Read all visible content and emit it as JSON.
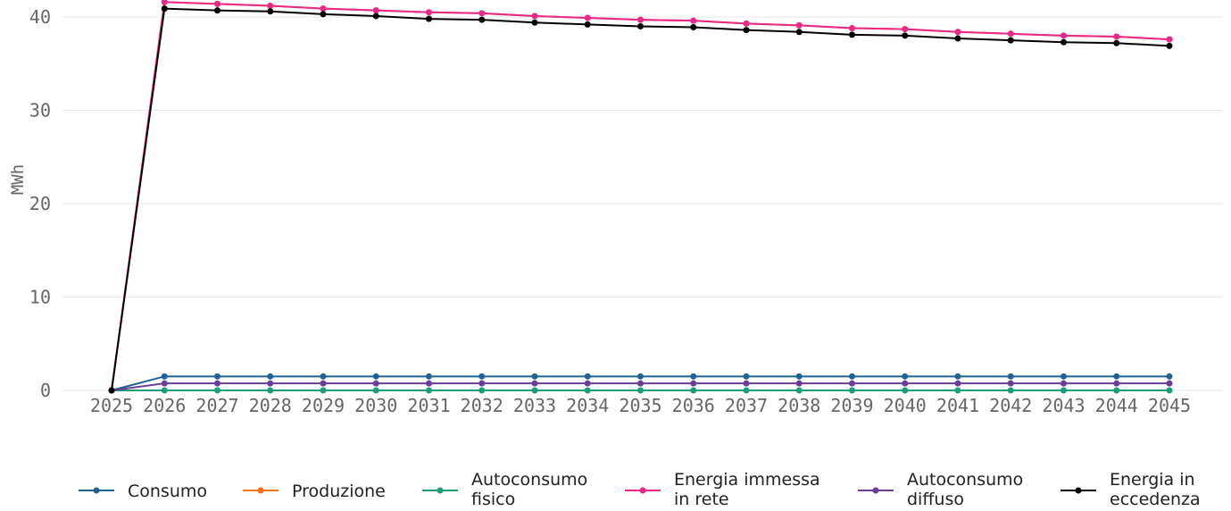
{
  "chart_data": {
    "type": "line",
    "title": "",
    "xlabel": "",
    "ylabel": "MWh",
    "ylim": [
      0,
      42
    ],
    "yticks": [
      0,
      10,
      20,
      30,
      40
    ],
    "grid": true,
    "legend_position": "bottom",
    "x": [
      "2025",
      "2026",
      "2027",
      "2028",
      "2029",
      "2030",
      "2031",
      "2032",
      "2033",
      "2034",
      "2035",
      "2036",
      "2037",
      "2038",
      "2039",
      "2040",
      "2041",
      "2042",
      "2043",
      "2044",
      "2045"
    ],
    "series": [
      {
        "name": "Consumo",
        "legend_lines": [
          "Consumo"
        ],
        "color": "#1f6396",
        "values": [
          0,
          1.5,
          1.5,
          1.5,
          1.5,
          1.5,
          1.5,
          1.5,
          1.5,
          1.5,
          1.5,
          1.5,
          1.5,
          1.5,
          1.5,
          1.5,
          1.5,
          1.5,
          1.5,
          1.5,
          1.5
        ]
      },
      {
        "name": "Produzione",
        "legend_lines": [
          "Produzione"
        ],
        "color": "#f47216",
        "values": [
          0,
          41.6,
          41.4,
          41.2,
          40.9,
          40.7,
          40.5,
          40.4,
          40.1,
          39.9,
          39.7,
          39.6,
          39.3,
          39.1,
          38.8,
          38.7,
          38.4,
          38.2,
          38.0,
          37.9,
          37.6
        ]
      },
      {
        "name": "Autoconsumo fisico",
        "legend_lines": [
          "Autoconsumo",
          "fisico"
        ],
        "color": "#1a9e77",
        "values": [
          0,
          0,
          0,
          0,
          0,
          0,
          0,
          0,
          0,
          0,
          0,
          0,
          0,
          0,
          0,
          0,
          0,
          0,
          0,
          0,
          0
        ]
      },
      {
        "name": "Energia immessa in rete",
        "legend_lines": [
          "Energia immessa",
          "in rete"
        ],
        "color": "#e7298a",
        "values": [
          0,
          41.6,
          41.4,
          41.2,
          40.9,
          40.7,
          40.5,
          40.4,
          40.1,
          39.9,
          39.7,
          39.6,
          39.3,
          39.1,
          38.8,
          38.7,
          38.4,
          38.2,
          38.0,
          37.9,
          37.6
        ]
      },
      {
        "name": "Autoconsumo diffuso",
        "legend_lines": [
          "Autoconsumo",
          "diffuso"
        ],
        "color": "#6a3d9a",
        "values": [
          0,
          0.75,
          0.75,
          0.75,
          0.75,
          0.75,
          0.75,
          0.75,
          0.75,
          0.75,
          0.75,
          0.75,
          0.75,
          0.75,
          0.75,
          0.75,
          0.75,
          0.75,
          0.75,
          0.75,
          0.75
        ]
      },
      {
        "name": "Energia in eccedenza",
        "legend_lines": [
          "Energia in",
          "eccedenza"
        ],
        "color": "#000000",
        "values": [
          0,
          40.9,
          40.7,
          40.6,
          40.3,
          40.1,
          39.8,
          39.7,
          39.4,
          39.2,
          39.0,
          38.9,
          38.6,
          38.4,
          38.1,
          38.0,
          37.7,
          37.5,
          37.3,
          37.2,
          36.9
        ]
      }
    ]
  }
}
